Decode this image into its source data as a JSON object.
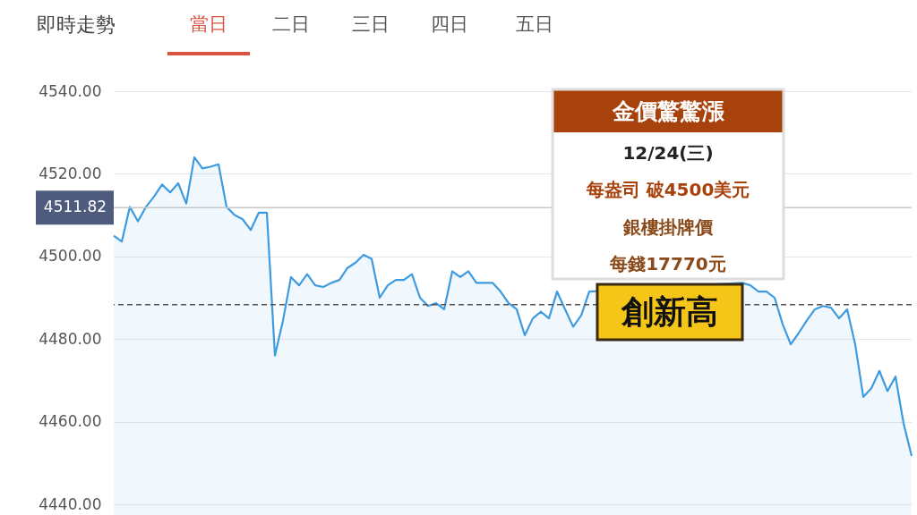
{
  "chart_data": {
    "type": "area",
    "title": "即時走勢",
    "categories": [
      null,
      null,
      null,
      null,
      null,
      null,
      null,
      null,
      null,
      null,
      null,
      null,
      null,
      null,
      null,
      null,
      null,
      null,
      null,
      null,
      null,
      null,
      null,
      null,
      null,
      null,
      null,
      null,
      null,
      null,
      null,
      null,
      null,
      null,
      null,
      null,
      null,
      null,
      null,
      null,
      null,
      null,
      null,
      null,
      null,
      null,
      null,
      null,
      null,
      null,
      null,
      null,
      null,
      null,
      null,
      null,
      null,
      null,
      null,
      null,
      null,
      null,
      null,
      null,
      null,
      null,
      null,
      null,
      null,
      null,
      null,
      null,
      null,
      null,
      null,
      null,
      null,
      null,
      null,
      null,
      null,
      null,
      null,
      null,
      null,
      null,
      null,
      null,
      null,
      null,
      null,
      null,
      null,
      null,
      null,
      null,
      null,
      null,
      null,
      null
    ],
    "series": [
      {
        "color": "#3f9be0",
        "values": [
          4505,
          4503.6,
          4512,
          4508.5,
          4512,
          4514.5,
          4517.4,
          4515.5,
          4517.7,
          4512.8,
          4524,
          4521.3,
          4521.7,
          4522.3,
          4512,
          4510,
          4509,
          4506.4,
          4510.6,
          4510.6,
          4476,
          4484.5,
          4495,
          4493,
          4495.7,
          4493,
          4492.6,
          4493.6,
          4494.3,
          4497.2,
          4498.5,
          4500.4,
          4499.4,
          4490,
          4493,
          4494.3,
          4494.3,
          4495.7,
          4490,
          4488,
          4488.7,
          4487.2,
          4496.4,
          4495,
          4496.4,
          4493.6,
          4493.6,
          4493.6,
          4491.5,
          4488.7,
          4487.2,
          4480.9,
          4485,
          4486.6,
          4485,
          4491.5,
          4487.2,
          4483,
          4485.7,
          4491.5,
          null,
          null,
          null,
          null,
          null,
          null,
          null,
          null,
          null,
          null,
          null,
          null,
          null,
          null,
          null,
          null,
          null,
          null,
          4493.6,
          4493,
          4491.5,
          4491.5,
          4490,
          4483.6,
          4478.7,
          4481.5,
          4484.5,
          4487.2,
          4488,
          4487.6,
          4485,
          4487.2,
          4478.7,
          4466,
          4468.1,
          4472.3,
          4467.4,
          4470.9,
          4459.6,
          4451.7
        ]
      }
    ],
    "ylim": [
      4440,
      4540
    ],
    "yticks": [
      {
        "value": 4440,
        "label": "4440.00"
      },
      {
        "value": 4460,
        "label": "4460.00"
      },
      {
        "value": 4480,
        "label": "4480.00"
      },
      {
        "value": 4500,
        "label": "4500.00"
      },
      {
        "value": 4520,
        "label": "4520.00"
      },
      {
        "value": 4540,
        "label": "4540.00"
      }
    ],
    "grid": "y",
    "ref_lines": [
      {
        "axis": "y",
        "value": 4488.3,
        "color": "#555555",
        "line_style": "dashed"
      },
      {
        "axis": "y",
        "value": 4511.82,
        "label": "4511.82",
        "color": "#c8c8c8",
        "line_style": "solid"
      }
    ],
    "annotations": [
      "當日",
      "二日",
      "三日",
      "四日",
      "五日",
      "金價驚驚漲",
      "12/24(三)",
      "每盎司 破4500美元",
      "銀樓掛牌價",
      "每錢17770元",
      "創新高"
    ]
  }
}
